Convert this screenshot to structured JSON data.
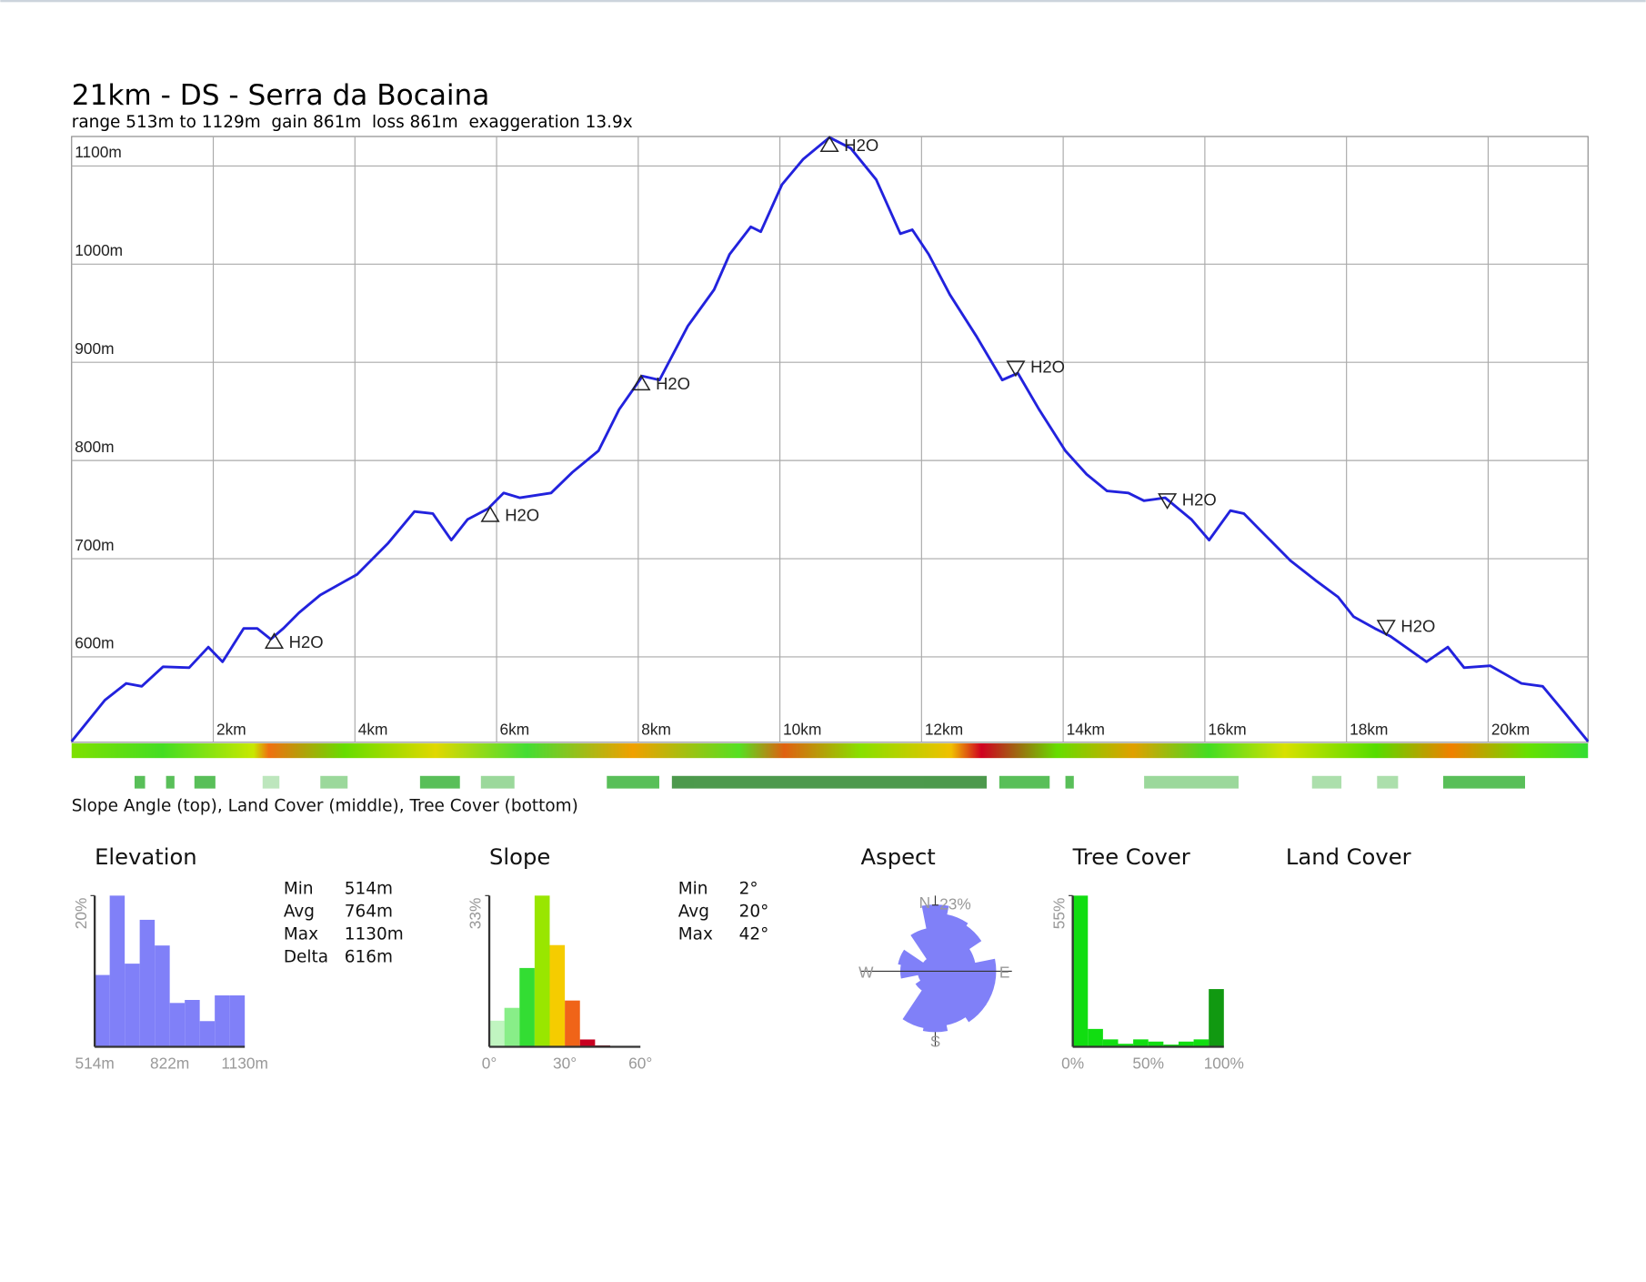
{
  "chart_data": [
    {
      "type": "line",
      "title": "21km - DS - Serra da Bocaina",
      "subtitle": "range 513m to 1129m  gain 861m  loss 861m  exaggeration 13.9x",
      "x": [
        0,
        0.47,
        0.77,
        0.99,
        1.29,
        1.66,
        1.93,
        2.13,
        2.43,
        2.62,
        2.81,
        2.99,
        3.21,
        3.51,
        4.03,
        4.47,
        4.84,
        5.1,
        5.36,
        5.59,
        5.88,
        6.1,
        6.33,
        6.77,
        7.07,
        7.44,
        7.73,
        8.06,
        8.3,
        8.7,
        9.07,
        9.29,
        9.59,
        9.73,
        10.03,
        10.33,
        10.7,
        11.0,
        11.36,
        11.7,
        11.87,
        12.1,
        12.4,
        12.77,
        13.14,
        13.36,
        13.66,
        14.03,
        14.33,
        14.62,
        14.92,
        15.14,
        15.44,
        15.81,
        16.06,
        16.36,
        16.55,
        16.77,
        17.21,
        17.58,
        17.88,
        18.1,
        18.4,
        18.62,
        19.13,
        19.43,
        19.66,
        20.03,
        20.47,
        20.77,
        21.07,
        21.41
      ],
      "values": [
        514,
        556,
        573,
        570,
        590,
        589,
        610,
        595,
        629,
        629,
        618,
        629,
        645,
        663,
        684,
        716,
        748,
        746,
        719,
        740,
        751,
        767,
        762,
        767,
        788,
        810,
        852,
        886,
        882,
        937,
        974,
        1010,
        1038,
        1033,
        1081,
        1107,
        1129,
        1118,
        1086,
        1031,
        1035,
        1010,
        969,
        927,
        882,
        889,
        852,
        810,
        786,
        769,
        767,
        759,
        762,
        740,
        719,
        749,
        746,
        730,
        698,
        677,
        661,
        641,
        629,
        621,
        595,
        610,
        589,
        591,
        573,
        570,
        544,
        514
      ],
      "color": "#2222dd",
      "xlim": [
        0,
        21.41
      ],
      "ylim": [
        513,
        1130
      ],
      "xticks": [
        {
          "value": 2,
          "label": "2km"
        },
        {
          "value": 4,
          "label": "4km"
        },
        {
          "value": 6,
          "label": "6km"
        },
        {
          "value": 8,
          "label": "8km"
        },
        {
          "value": 10,
          "label": "10km"
        },
        {
          "value": 12,
          "label": "12km"
        },
        {
          "value": 14,
          "label": "14km"
        },
        {
          "value": 16,
          "label": "16km"
        },
        {
          "value": 18,
          "label": "18km"
        },
        {
          "value": 20,
          "label": "20km"
        }
      ],
      "yticks": [
        {
          "value": 600,
          "label": "600m"
        },
        {
          "value": 700,
          "label": "700m"
        },
        {
          "value": 800,
          "label": "800m"
        },
        {
          "value": 900,
          "label": "900m"
        },
        {
          "value": 1000,
          "label": "1000m"
        },
        {
          "value": 1100,
          "label": "1100m"
        }
      ],
      "grid": true,
      "markers": [
        {
          "x": 2.86,
          "y": 615,
          "label": "H2O",
          "direction": "up"
        },
        {
          "x": 5.91,
          "y": 744,
          "label": "H2O",
          "direction": "up"
        },
        {
          "x": 8.04,
          "y": 878,
          "label": "H2O",
          "direction": "up"
        },
        {
          "x": 10.7,
          "y": 1121,
          "label": "H2O",
          "direction": "up"
        },
        {
          "x": 13.33,
          "y": 895,
          "label": "H2O",
          "direction": "down"
        },
        {
          "x": 15.47,
          "y": 760,
          "label": "H2O",
          "direction": "down"
        },
        {
          "x": 18.56,
          "y": 631,
          "label": "H2O",
          "direction": "down"
        }
      ]
    },
    {
      "type": "histogram",
      "title": "Elevation",
      "bins": [
        514,
        575.6,
        637.2,
        698.8,
        760.4,
        822,
        883.6,
        945.2,
        1006.8,
        1068.4,
        1130
      ],
      "values": [
        9.5,
        20,
        11,
        16.8,
        13.4,
        5.8,
        6.2,
        3.4,
        6.8,
        6.8
      ],
      "color": "#8080f8",
      "xlim": [
        514,
        1130
      ],
      "ylim": [
        0,
        20
      ],
      "xticks": [
        {
          "value": 514,
          "label": "514m"
        },
        {
          "value": 822,
          "label": "822m"
        },
        {
          "value": 1130,
          "label": "1130m"
        }
      ],
      "yticks": [
        {
          "value": 20,
          "label": "20%"
        }
      ]
    },
    {
      "type": "histogram",
      "title": "Slope",
      "bins": [
        0,
        6,
        12,
        18,
        24,
        30,
        36,
        42,
        48
      ],
      "values": [
        5.7,
        8.5,
        17.2,
        33,
        22.2,
        10.1,
        1.6,
        0.3
      ],
      "colors": [
        "#c0f5c0",
        "#88ee88",
        "#33dd33",
        "#99e600",
        "#f5cc00",
        "#f06418",
        "#c80020",
        "#800010"
      ],
      "xlim": [
        0,
        60
      ],
      "ylim": [
        0,
        33
      ],
      "xticks": [
        {
          "value": 0,
          "label": "0°"
        },
        {
          "value": 30,
          "label": "30°"
        },
        {
          "value": 60,
          "label": "60°"
        }
      ],
      "yticks": [
        {
          "value": 33,
          "label": "33%"
        }
      ]
    },
    {
      "type": "polar",
      "title": "Aspect",
      "categories": [
        "N",
        null,
        null,
        null,
        "E",
        null,
        null,
        null,
        "S",
        null,
        null,
        null,
        "W",
        null,
        null,
        null
      ],
      "values": [
        23,
        20,
        19,
        14,
        21,
        21,
        21,
        19,
        21,
        20,
        8,
        6,
        12,
        13,
        5,
        15
      ],
      "color": "#8080f8",
      "ylim": [
        0,
        23
      ],
      "yticks": [
        {
          "value": 23,
          "label": "23%"
        }
      ]
    },
    {
      "type": "histogram",
      "title": "Tree Cover",
      "bins": [
        0,
        10,
        20,
        30,
        40,
        50,
        60,
        70,
        80,
        90,
        100
      ],
      "values": [
        55,
        6.5,
        2.7,
        1.1,
        2.7,
        1.9,
        0.8,
        1.9,
        2.7,
        21
      ],
      "colors": [
        "#11dd11",
        "#11dd11",
        "#11dd11",
        "#11dd11",
        "#11dd11",
        "#11dd11",
        "#11dd11",
        "#11dd11",
        "#11dd11",
        "#119911"
      ],
      "xlim": [
        0,
        100
      ],
      "ylim": [
        0,
        55
      ],
      "xticks": [
        {
          "value": 0,
          "label": "0%"
        },
        {
          "value": 50,
          "label": "50%"
        },
        {
          "value": 100,
          "label": "100%"
        }
      ],
      "yticks": [
        {
          "value": 55,
          "label": "55%"
        }
      ]
    }
  ],
  "land_cover_title": "Land Cover",
  "caption": "Slope Angle (top), Land Cover (middle), Tree Cover (bottom)",
  "elevation_stats": [
    [
      "Min",
      "514m"
    ],
    [
      "Avg",
      "764m"
    ],
    [
      "Max",
      "1130m"
    ],
    [
      "Delta",
      "616m"
    ]
  ],
  "slope_stats": [
    [
      "Min",
      "2°"
    ],
    [
      "Avg",
      "20°"
    ],
    [
      "Max",
      "42°"
    ]
  ]
}
